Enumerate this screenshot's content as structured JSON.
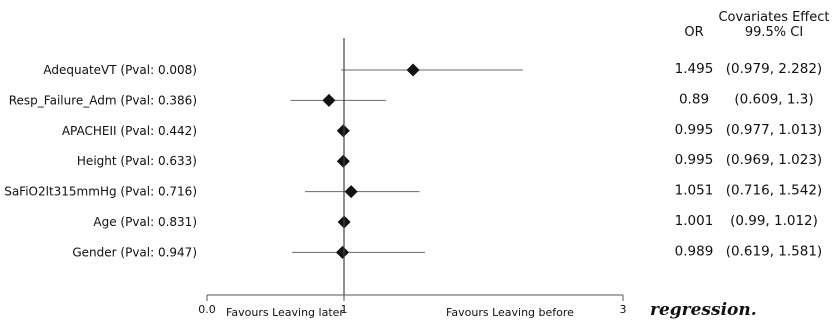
{
  "chart_data": {
    "type": "forest",
    "title": "",
    "xlim": [
      0,
      3
    ],
    "reference_line": 1,
    "x_ticks": [
      "0.0",
      "1",
      "3"
    ],
    "favours_left": "Favours Leaving later",
    "favours_right": "Favours Leaving before",
    "column_headers": {
      "or": "OR",
      "ci_line1": "Covariates Effect",
      "ci_line2": "99.5% CI"
    },
    "rows": [
      {
        "label": "AdequateVT (Pval: 0.008)",
        "or": 1.495,
        "lower": 0.979,
        "upper": 2.282,
        "or_text": "1.495",
        "ci_text": "(0.979, 2.282)"
      },
      {
        "label": "Resp_Failure_Adm (Pval: 0.386)",
        "or": 0.89,
        "lower": 0.609,
        "upper": 1.3,
        "or_text": "0.89",
        "ci_text": "(0.609, 1.3)"
      },
      {
        "label": "APACHEII (Pval: 0.442)",
        "or": 0.995,
        "lower": 0.977,
        "upper": 1.013,
        "or_text": "0.995",
        "ci_text": "(0.977, 1.013)"
      },
      {
        "label": "Height (Pval: 0.633)",
        "or": 0.995,
        "lower": 0.969,
        "upper": 1.023,
        "or_text": "0.995",
        "ci_text": "(0.969, 1.023)"
      },
      {
        "label": "SaFiO2lt315mmHg (Pval: 0.716)",
        "or": 1.051,
        "lower": 0.716,
        "upper": 1.542,
        "or_text": "1.051",
        "ci_text": "(0.716, 1.542)"
      },
      {
        "label": "Age (Pval: 0.831)",
        "or": 1.001,
        "lower": 0.99,
        "upper": 1.012,
        "or_text": "1.001",
        "ci_text": "(0.99, 1.012)"
      },
      {
        "label": "Gender (Pval: 0.947)",
        "or": 0.989,
        "lower": 0.619,
        "upper": 1.581,
        "or_text": "0.989",
        "ci_text": "(0.619, 1.581)"
      }
    ]
  },
  "caption_fragment": "regression."
}
